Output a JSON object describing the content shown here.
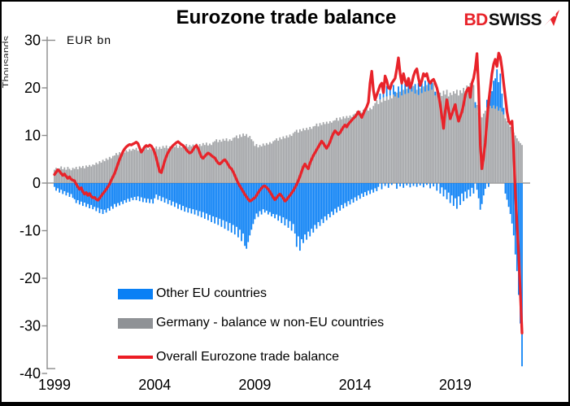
{
  "header": {
    "logo": {
      "prefix": "BD",
      "suffix": "SWISS",
      "arrow_icon": "red-arrow-ne",
      "prefix_color": "#e8232a",
      "suffix_color": "#0d0d0d"
    }
  },
  "axis": {
    "unit_label": "EUR bn",
    "side_clipped_label": "Thousands",
    "y_ticks": [
      30,
      20,
      10,
      0,
      -10,
      -20,
      -30,
      -40
    ],
    "x_ticks": [
      "1999",
      "2004",
      "2009",
      "2014",
      "2019"
    ]
  },
  "legend": [
    {
      "label": "Other EU countries",
      "color": "#0a80f5",
      "type": "bar"
    },
    {
      "label": "Germany - balance w non-EU countries",
      "color": "#8f9296",
      "type": "bar"
    },
    {
      "label": "Overall Eurozone trade balance",
      "color": "#ec1c24",
      "type": "line"
    }
  ],
  "chart_data": {
    "type": "bar",
    "subtype": "stacked-monthly-bars-with-line-overlay",
    "title": "Eurozone trade balance",
    "xlabel": "",
    "ylabel": "EUR bn",
    "ylim": [
      -40,
      30
    ],
    "xlim": [
      "1999-01",
      "2022-05"
    ],
    "freq": "monthly",
    "grid": "zero-line-only",
    "legend_position": "inside-bottom-left",
    "years_order": [
      "1999",
      "2000",
      "2001",
      "2002",
      "2003",
      "2004",
      "2005",
      "2006",
      "2007",
      "2008",
      "2009",
      "2010",
      "2011",
      "2012",
      "2013",
      "2014",
      "2015",
      "2016",
      "2017",
      "2018",
      "2019",
      "2020",
      "2021",
      "2022"
    ],
    "series": [
      {
        "name": "Other EU countries",
        "role": "stacked-bar",
        "color": "#0a80f5",
        "values_by_year": {
          "1999": [
            -0.8,
            -1.6,
            -1.1,
            -2.0,
            -1.4,
            -2.3,
            -1.7,
            -2.6,
            -2.0,
            -2.9,
            -2.3,
            -3.1
          ],
          "2000": [
            -3.4,
            -4.2,
            -3.6,
            -4.5,
            -3.9,
            -4.8,
            -4.1,
            -5.0,
            -4.4,
            -5.3,
            -4.6,
            -5.5
          ],
          "2001": [
            -5.0,
            -5.9,
            -5.2,
            -6.3,
            -5.5,
            -6.5,
            -5.6,
            -6.2,
            -5.3,
            -5.8,
            -4.9,
            -5.4
          ],
          "2002": [
            -4.4,
            -5.0,
            -4.2,
            -4.7,
            -3.9,
            -4.4,
            -3.6,
            -4.1,
            -3.3,
            -3.9,
            -3.1,
            -3.6
          ],
          "2003": [
            -2.9,
            -3.6,
            -2.8,
            -3.8,
            -3.0,
            -4.0,
            -3.2,
            -4.1,
            -3.3,
            -4.2,
            -3.4,
            -4.3
          ],
          "2004": [
            -3.2,
            -2.4,
            -3.5,
            -2.7,
            -3.8,
            -3.0,
            -4.1,
            -3.3,
            -4.4,
            -3.6,
            -4.7,
            -3.9
          ],
          "2005": [
            -5.0,
            -4.2,
            -5.4,
            -4.5,
            -5.7,
            -4.8,
            -6.0,
            -5.1,
            -6.2,
            -5.3,
            -6.4,
            -5.5
          ],
          "2006": [
            -6.6,
            -5.7,
            -6.9,
            -5.9,
            -7.2,
            -6.1,
            -7.5,
            -6.4,
            -7.8,
            -6.7,
            -8.2,
            -7.0
          ],
          "2007": [
            -8.5,
            -7.2,
            -8.8,
            -7.5,
            -9.2,
            -7.8,
            -9.6,
            -8.1,
            -10.0,
            -8.4,
            -10.4,
            -8.8
          ],
          "2008": [
            -10.8,
            -9.2,
            -11.4,
            -9.8,
            -12.2,
            -10.6,
            -13.2,
            -13.8,
            -12.4,
            -11.0,
            -9.8,
            -8.6
          ],
          "2009": [
            -7.6,
            -6.4,
            -7.1,
            -5.9,
            -6.6,
            -5.5,
            -6.2,
            -5.8,
            -6.6,
            -6.1,
            -7.0,
            -6.5
          ],
          "2010": [
            -7.4,
            -6.6,
            -7.9,
            -6.9,
            -8.4,
            -7.2,
            -8.9,
            -7.6,
            -9.4,
            -8.0,
            -10.0,
            -8.6
          ],
          "2011": [
            -10.6,
            -13.4,
            -11.2,
            -14.2,
            -11.8,
            -12.6,
            -10.8,
            -11.9,
            -10.2,
            -11.2,
            -9.6,
            -10.4
          ],
          "2012": [
            -8.8,
            -9.6,
            -8.2,
            -9.0,
            -7.6,
            -8.4,
            -7.0,
            -7.8,
            -6.5,
            -7.2,
            -6.0,
            -6.7
          ],
          "2013": [
            -5.4,
            -6.2,
            -5.0,
            -5.8,
            -4.6,
            -5.3,
            -4.2,
            -4.9,
            -3.8,
            -4.5,
            -3.4,
            -4.1
          ],
          "2014": [
            -3.0,
            -3.7,
            -2.6,
            -3.3,
            -2.2,
            -2.9,
            -1.9,
            -2.6,
            -1.6,
            -2.3,
            -1.4,
            -2.0
          ],
          "2015": [
            -1.1,
            -1.7,
            -0.8,
            1.2,
            -1.3,
            1.8,
            -0.6,
            2.2,
            -1.0,
            1.5,
            -0.4,
            2.0
          ],
          "2016": [
            1.0,
            -1.2,
            2.4,
            -0.7,
            2.8,
            -1.0,
            2.2,
            -0.5,
            2.6,
            -0.9,
            1.8,
            -0.6
          ],
          "2017": [
            2.0,
            -0.8,
            2.5,
            -0.5,
            3.0,
            -0.9,
            2.3,
            -0.4,
            2.8,
            -1.1,
            1.6,
            -0.7
          ],
          "2018": [
            0.8,
            -1.6,
            0.4,
            -2.2,
            -0.9,
            -2.8,
            -1.4,
            -3.4,
            -2.0,
            -4.2,
            -2.6,
            -4.8
          ],
          "2019": [
            -3.2,
            -5.4,
            -2.8,
            -4.6,
            -2.2,
            -3.8,
            -1.8,
            -3.2,
            -1.4,
            -2.8,
            -1.0,
            -2.2
          ],
          "2020": [
            1.2,
            -1.4,
            -3.2,
            -5.6,
            -4.4,
            -2.6,
            -1.2,
            1.6,
            -0.8,
            2.4,
            3.6,
            5.2
          ],
          "2021": [
            6.4,
            7.8,
            6.0,
            7.2,
            3.8,
            1.4,
            -2.2,
            -3.5,
            -5.0,
            -6.5,
            -8.5,
            -11.0
          ],
          "2022": [
            -15.0,
            -18.5,
            -23.5,
            -29.5,
            -38.5
          ]
        }
      },
      {
        "name": "Germany - balance w non-EU countries",
        "role": "stacked-bar",
        "color": "#a3a5a8",
        "values_by_year": {
          "1999": [
            2.8,
            3.2,
            2.6,
            3.1,
            3.5,
            2.9,
            3.3,
            2.8,
            3.4,
            3.0,
            2.7,
            3.2
          ],
          "2000": [
            3.0,
            3.4,
            2.9,
            3.5,
            3.2,
            3.6,
            3.1,
            3.7,
            3.4,
            3.8,
            3.5,
            3.9
          ],
          "2001": [
            3.8,
            4.3,
            4.0,
            4.6,
            4.3,
            4.9,
            4.6,
            5.2,
            4.9,
            5.5,
            5.2,
            5.7
          ],
          "2002": [
            5.8,
            6.3,
            5.9,
            6.5,
            6.2,
            6.7,
            6.4,
            6.9,
            6.6,
            7.1,
            6.8,
            7.2
          ],
          "2003": [
            7.0,
            7.4,
            6.8,
            7.3,
            6.9,
            7.5,
            7.1,
            7.6,
            7.0,
            7.4,
            7.1,
            7.5
          ],
          "2004": [
            7.3,
            7.7,
            7.1,
            7.6,
            7.2,
            7.8,
            7.4,
            7.9,
            7.3,
            7.7,
            7.4,
            7.8
          ],
          "2005": [
            7.6,
            8.0,
            7.4,
            7.9,
            7.5,
            8.1,
            7.7,
            8.2,
            7.6,
            8.0,
            7.7,
            8.1
          ],
          "2006": [
            7.9,
            8.3,
            7.7,
            8.2,
            7.8,
            8.4,
            8.0,
            8.5,
            7.9,
            8.3,
            8.0,
            8.6
          ],
          "2007": [
            8.8,
            9.2,
            8.6,
            9.1,
            8.7,
            9.3,
            8.9,
            9.4,
            8.8,
            9.2,
            8.9,
            9.5
          ],
          "2008": [
            9.6,
            10.0,
            9.4,
            10.2,
            9.7,
            10.4,
            9.9,
            10.3,
            9.6,
            9.9,
            9.2,
            8.8
          ],
          "2009": [
            7.8,
            8.2,
            7.5,
            8.0,
            7.7,
            8.3,
            7.9,
            8.4,
            8.1,
            8.6,
            8.3,
            8.8
          ],
          "2010": [
            9.0,
            9.4,
            8.9,
            9.6,
            9.2,
            9.8,
            9.4,
            10.0,
            9.6,
            10.2,
            9.9,
            10.5
          ],
          "2011": [
            10.8,
            11.2,
            10.6,
            11.3,
            10.9,
            11.5,
            11.1,
            11.6,
            11.2,
            11.8,
            11.4,
            11.9
          ],
          "2012": [
            12.0,
            12.5,
            11.9,
            12.6,
            12.2,
            12.8,
            12.4,
            12.9,
            12.5,
            13.0,
            12.7,
            13.1
          ],
          "2013": [
            13.2,
            13.7,
            13.1,
            13.8,
            13.4,
            14.0,
            13.6,
            14.1,
            13.7,
            14.2,
            13.9,
            14.4
          ],
          "2014": [
            14.6,
            15.1,
            14.5,
            15.2,
            14.8,
            15.4,
            15.0,
            15.6,
            15.2,
            15.8,
            15.5,
            16.2
          ],
          "2015": [
            16.8,
            17.4,
            16.6,
            17.6,
            17.0,
            18.0,
            17.3,
            18.2,
            17.5,
            18.4,
            17.8,
            18.6
          ],
          "2016": [
            18.2,
            19.0,
            17.9,
            19.2,
            18.4,
            19.6,
            18.7,
            19.8,
            18.9,
            20.0,
            19.2,
            20.4
          ],
          "2017": [
            18.8,
            19.6,
            18.5,
            19.9,
            18.9,
            20.3,
            19.2,
            20.6,
            19.4,
            20.8,
            19.6,
            21.0
          ],
          "2018": [
            18.4,
            19.2,
            18.0,
            19.0,
            18.3,
            19.4,
            18.6,
            19.6,
            18.2,
            19.0,
            18.5,
            19.3
          ],
          "2019": [
            18.8,
            19.6,
            18.4,
            19.5,
            18.9,
            20.0,
            19.3,
            20.5,
            19.6,
            21.0,
            19.9,
            20.6
          ],
          "2020": [
            15.8,
            16.4,
            14.8,
            14.0,
            13.8,
            14.6,
            15.2,
            15.9,
            15.4,
            16.2,
            15.7,
            16.3
          ],
          "2021": [
            15.6,
            16.1,
            15.2,
            15.8,
            15.0,
            14.4,
            13.6,
            13.0,
            12.4,
            11.8,
            11.2,
            10.6
          ],
          "2022": [
            10.0,
            9.4,
            8.8,
            8.4,
            8.0
          ]
        }
      },
      {
        "name": "Overall Eurozone trade balance",
        "role": "line",
        "color": "#e8232a",
        "values_by_year": {
          "1999": [
            1.8,
            2.3,
            2.8,
            2.5,
            2.0,
            1.6,
            1.9,
            1.4,
            1.0,
            1.3,
            0.8,
            0.6
          ],
          "2000": [
            0.5,
            -0.2,
            -0.8,
            -1.3,
            -1.0,
            -1.8,
            -2.3,
            -2.0,
            -2.6,
            -2.2,
            -2.8,
            -3.1
          ],
          "2001": [
            -3.0,
            -3.4,
            -3.6,
            -3.2,
            -2.7,
            -2.2,
            -1.8,
            -1.3,
            -0.8,
            -0.2,
            0.6,
            1.3
          ],
          "2002": [
            2.0,
            3.0,
            4.0,
            5.0,
            5.8,
            6.6,
            7.2,
            7.6,
            7.9,
            8.1,
            8.0,
            8.2
          ],
          "2003": [
            8.4,
            8.6,
            8.3,
            7.4,
            6.5,
            7.0,
            7.6,
            7.9,
            7.7,
            8.0,
            7.8,
            7.2
          ],
          "2004": [
            6.4,
            5.2,
            3.8,
            2.4,
            2.2,
            3.4,
            4.6,
            5.6,
            6.4,
            7.0,
            7.5,
            7.9
          ],
          "2005": [
            8.2,
            8.5,
            8.7,
            8.4,
            8.1,
            7.9,
            7.5,
            7.0,
            6.6,
            6.3,
            6.5,
            7.0
          ],
          "2006": [
            7.6,
            7.9,
            7.3,
            6.4,
            5.5,
            5.2,
            5.6,
            6.0,
            6.3,
            6.1,
            5.8,
            5.5
          ],
          "2007": [
            5.3,
            4.7,
            4.2,
            4.0,
            4.3,
            4.7,
            4.9,
            4.5,
            3.9,
            3.3,
            3.0,
            2.4
          ],
          "2008": [
            1.6,
            0.8,
            0.0,
            -0.6,
            -1.2,
            -1.8,
            -2.4,
            -2.9,
            -3.4,
            -3.8,
            -3.6,
            -3.3
          ],
          "2009": [
            -3.1,
            -2.6,
            -2.0,
            -1.5,
            -1.1,
            -0.7,
            -0.6,
            -0.9,
            -1.3,
            -1.8,
            -2.4,
            -3.0
          ],
          "2010": [
            -3.5,
            -3.1,
            -2.6,
            -2.3,
            -2.7,
            -3.2,
            -3.8,
            -3.5,
            -3.0,
            -2.6,
            -2.1,
            -1.6
          ],
          "2011": [
            -1.0,
            -0.3,
            0.5,
            1.4,
            2.4,
            3.4,
            4.0,
            3.4,
            3.0,
            4.2,
            5.0,
            5.8
          ],
          "2012": [
            6.4,
            7.0,
            7.6,
            8.2,
            8.8,
            8.4,
            7.8,
            7.3,
            7.9,
            8.6,
            9.6,
            10.4
          ],
          "2013": [
            11.0,
            10.6,
            10.2,
            10.6,
            11.2,
            11.8,
            12.2,
            11.8,
            12.4,
            12.8,
            13.2,
            13.6
          ],
          "2014": [
            13.9,
            14.4,
            15.0,
            14.4,
            13.8,
            14.6,
            15.4,
            16.0,
            17.0,
            21.0,
            23.5,
            19.5
          ],
          "2015": [
            17.5,
            18.5,
            19.5,
            20.5,
            21.0,
            19.0,
            22.5,
            21.5,
            20.0,
            19.8,
            21.0,
            21.5
          ],
          "2016": [
            22.0,
            24.0,
            26.3,
            23.0,
            21.0,
            23.0,
            21.5,
            20.5,
            22.0,
            20.0,
            21.0,
            22.5
          ],
          "2017": [
            23.5,
            24.0,
            22.0,
            20.5,
            21.5,
            23.0,
            22.5,
            23.0,
            21.5,
            21.0,
            21.5,
            21.8
          ],
          "2018": [
            21.0,
            20.0,
            18.5,
            16.5,
            14.0,
            11.5,
            15.0,
            17.5,
            15.5,
            13.5,
            14.5,
            15.5
          ],
          "2019": [
            16.5,
            14.5,
            13.0,
            14.0,
            15.0,
            16.5,
            18.5,
            19.5,
            20.0,
            18.0,
            21.0,
            22.0
          ],
          "2020": [
            24.0,
            27.2,
            20.0,
            8.0,
            3.0,
            5.5,
            8.5,
            13.0,
            17.0,
            20.0,
            23.0,
            25.0
          ],
          "2021": [
            26.0,
            24.5,
            27.3,
            26.5,
            24.0,
            21.0,
            18.0,
            15.0,
            13.0,
            12.5,
            13.0,
            7.0
          ],
          "2022": [
            -2.0,
            -8.5,
            -15.0,
            -23.0,
            -31.5
          ]
        }
      }
    ]
  },
  "colors": {
    "background": "#ffffff",
    "frame_border": "#000000",
    "axis_line": "#8c8c8c",
    "zero_line": "#9a9a9a",
    "blue_bar": "#0a80f5",
    "gray_bar": "#a3a5a8",
    "red_line": "#e8232a",
    "text": "#000000"
  }
}
